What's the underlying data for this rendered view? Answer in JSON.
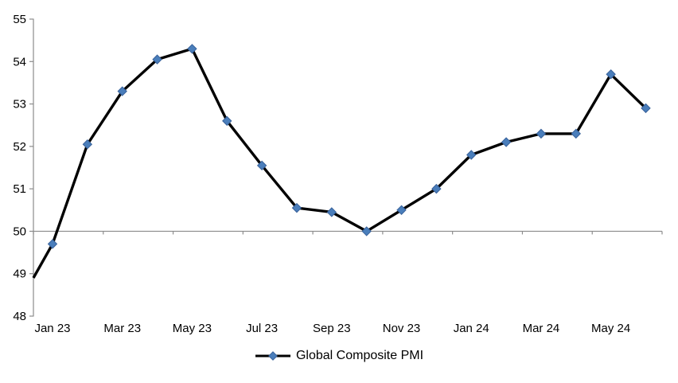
{
  "chart_data": {
    "type": "line",
    "title": "",
    "legend": {
      "label": "Global Composite PMI",
      "position": "bottom-center"
    },
    "categories": [
      "Jan 23",
      "Feb 23",
      "Mar 23",
      "Apr 23",
      "May 23",
      "Jun 23",
      "Jul 23",
      "Aug 23",
      "Sep 23",
      "Oct 23",
      "Nov 23",
      "Dec 23",
      "Jan 24",
      "Feb 24",
      "Mar 24",
      "Apr 24",
      "May 24",
      "Jun 24"
    ],
    "x_tick_labels": [
      "Jan 23",
      "Mar 23",
      "May 23",
      "Jul 23",
      "Sep 23",
      "Nov 23",
      "Jan 24",
      "Mar 24",
      "May 24"
    ],
    "series": [
      {
        "name": "Global Composite PMI",
        "lead_in_value": 48.9,
        "values": [
          49.7,
          52.05,
          53.3,
          54.05,
          54.3,
          52.6,
          51.55,
          50.55,
          50.45,
          50.0,
          50.5,
          51.0,
          51.8,
          52.1,
          52.3,
          52.3,
          53.7,
          52.9
        ]
      }
    ],
    "ylim": [
      48,
      55
    ],
    "yticks": [
      55,
      54,
      53,
      52,
      51,
      50,
      49,
      48
    ],
    "axis_cross_value": 50,
    "gridlines": "none except category axis line drawn at value 50",
    "marker_shape": "diamond",
    "colors": {
      "line": "#000000",
      "marker_fill": "#4A7EBB",
      "marker_edge": "#38619A",
      "axis": "#8C8C8C",
      "text": "#000000",
      "background": "#FFFFFF"
    }
  }
}
